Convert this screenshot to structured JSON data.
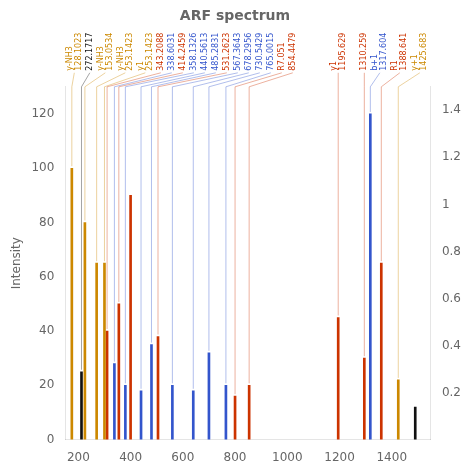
{
  "chart_data": {
    "type": "bar",
    "title": "ARF spectrum",
    "y_label": "Intensity",
    "x": [
      175,
      225,
      270,
      212,
      310,
      355,
      300,
      338,
      380,
      400,
      440,
      480,
      505,
      560,
      640,
      700,
      765,
      800,
      854,
      1195,
      1295,
      1318,
      1360,
      1425,
      1490
    ],
    "values": [
      100,
      80,
      65,
      25,
      40,
      50,
      65,
      28,
      20,
      90,
      18,
      35,
      38,
      20,
      18,
      32,
      20,
      16,
      20,
      45,
      30,
      120,
      65,
      22,
      12
    ],
    "colors": [
      "#cc8800",
      "#cc8800",
      "#cc8800",
      "#111111",
      "#cc3300",
      "#cc3300",
      "#cc8800",
      "#3355cc",
      "#3355cc",
      "#cc3300",
      "#3355cc",
      "#3355cc",
      "#cc3300",
      "#3355cc",
      "#3355cc",
      "#3355cc",
      "#3355cc",
      "#cc3300",
      "#cc3300",
      "#cc3300",
      "#cc3300",
      "#3355cc",
      "#cc3300",
      "#cc8800",
      "#111111"
    ],
    "peak_labels": [
      "y-NH3\n128.1023",
      "y-NH3\n153.0534",
      "y-NH3\n253.1423",
      "272.1717",
      "343.2088",
      "414.2459",
      "y1\n253.1423",
      "338.6031",
      "358.1326",
      null,
      "440.5613",
      "485.2831",
      "531.2623",
      "567.3643",
      "678.2956",
      "730.5429",
      "765.0015",
      "R7.051",
      "854.4479",
      "y1\n1195.629",
      "1310.259",
      "b+1\n1317.604",
      "R1\n1388.641",
      "y+1\n1425.683",
      null
    ],
    "xlim": [
      150,
      1550
    ],
    "xticks": [
      200,
      400,
      600,
      800,
      1000,
      1200,
      1400
    ],
    "ylim": [
      0,
      130
    ],
    "yticks": [
      0,
      20,
      40,
      60,
      80,
      100,
      120
    ],
    "y2lim": [
      0,
      1.5
    ],
    "y2ticks": [
      0.2,
      0.4,
      0.6,
      0.8,
      1.0,
      1.2,
      1.4
    ],
    "grid": false
  }
}
